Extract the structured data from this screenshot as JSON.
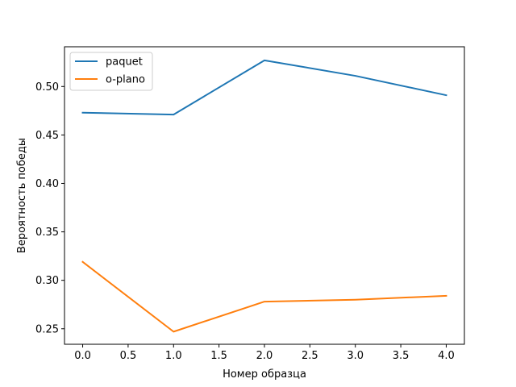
{
  "chart_data": {
    "type": "line",
    "title": "",
    "xlabel": "Номер образца",
    "ylabel": "Вероятность победы",
    "x": [
      0,
      1,
      2,
      3,
      4
    ],
    "xlim": [
      -0.2,
      4.2
    ],
    "ylim": [
      0.234,
      0.541
    ],
    "xticks": [
      0.0,
      0.5,
      1.0,
      1.5,
      2.0,
      2.5,
      3.0,
      3.5,
      4.0
    ],
    "xtick_labels": [
      "0.0",
      "0.5",
      "1.0",
      "1.5",
      "2.0",
      "2.5",
      "3.0",
      "3.5",
      "4.0"
    ],
    "yticks": [
      0.25,
      0.3,
      0.35,
      0.4,
      0.45,
      0.5
    ],
    "ytick_labels": [
      "0.25",
      "0.30",
      "0.35",
      "0.40",
      "0.45",
      "0.50"
    ],
    "grid": false,
    "legend_position": "top-left",
    "series": [
      {
        "name": "paquet",
        "color": "#1f77b4",
        "values": [
          0.473,
          0.471,
          0.527,
          0.511,
          0.491
        ]
      },
      {
        "name": "o-plano",
        "color": "#ff7f0e",
        "values": [
          0.319,
          0.247,
          0.278,
          0.28,
          0.284
        ]
      }
    ]
  }
}
